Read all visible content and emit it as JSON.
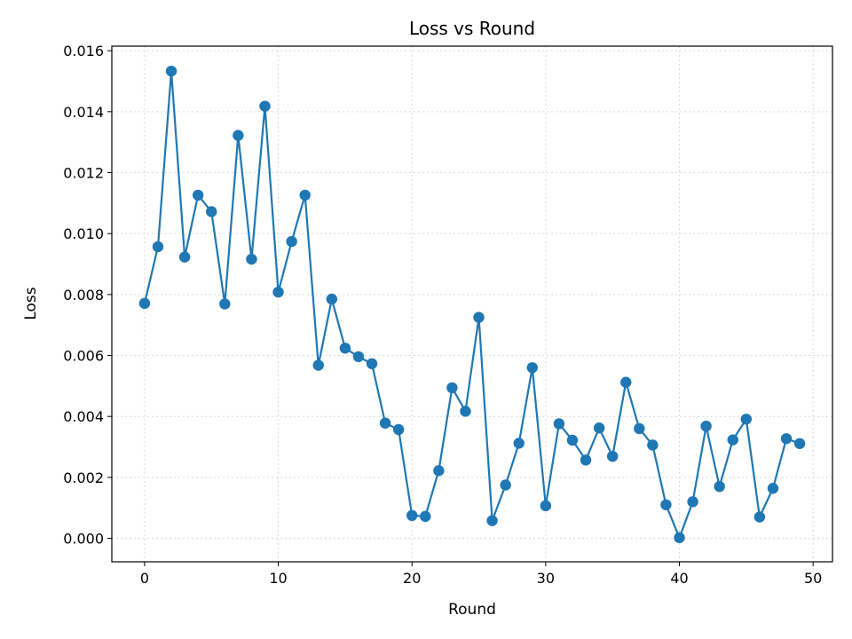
{
  "chart_data": {
    "type": "line",
    "title": "Loss vs Round",
    "xlabel": "Round",
    "ylabel": "Loss",
    "xlim": [
      -2.45,
      51.45
    ],
    "ylim": [
      -0.00077,
      0.01615
    ],
    "xticks": [
      0,
      10,
      20,
      30,
      40,
      50
    ],
    "yticks": [
      0.0,
      0.002,
      0.004,
      0.006,
      0.008,
      0.01,
      0.012,
      0.014,
      0.016
    ],
    "xtick_labels": [
      "0",
      "10",
      "20",
      "30",
      "40",
      "50"
    ],
    "ytick_labels": [
      "0.000",
      "0.002",
      "0.004",
      "0.006",
      "0.008",
      "0.010",
      "0.012",
      "0.014",
      "0.016"
    ],
    "grid": true,
    "color": "#1f77b4",
    "series": [
      {
        "x": [
          0,
          1,
          2,
          3,
          4,
          5,
          6,
          7,
          8,
          9,
          10,
          11,
          12,
          13,
          14,
          15,
          16,
          17,
          18,
          19,
          20,
          21,
          22,
          23,
          24,
          25,
          26,
          27,
          28,
          29,
          30,
          31,
          32,
          33,
          34,
          35,
          36,
          37,
          38,
          39,
          40,
          41,
          42,
          43,
          44,
          45,
          46,
          47,
          48,
          49
        ],
        "values": [
          0.00771,
          0.00957,
          0.01533,
          0.00923,
          0.01126,
          0.01072,
          0.00769,
          0.01322,
          0.00916,
          0.01418,
          0.00808,
          0.00974,
          0.01126,
          0.00568,
          0.00785,
          0.00624,
          0.00596,
          0.00573,
          0.00378,
          0.00357,
          0.00075,
          0.00072,
          0.00222,
          0.00494,
          0.00417,
          0.00725,
          0.00058,
          0.00175,
          0.00312,
          0.0056,
          0.00107,
          0.00376,
          0.00322,
          0.00257,
          0.00362,
          0.00269,
          0.00512,
          0.0036,
          0.00306,
          0.0011,
          2e-05,
          0.0012,
          0.00368,
          0.0017,
          0.00323,
          0.00391,
          0.0007,
          0.00164,
          0.00327,
          0.00311
        ]
      }
    ]
  }
}
